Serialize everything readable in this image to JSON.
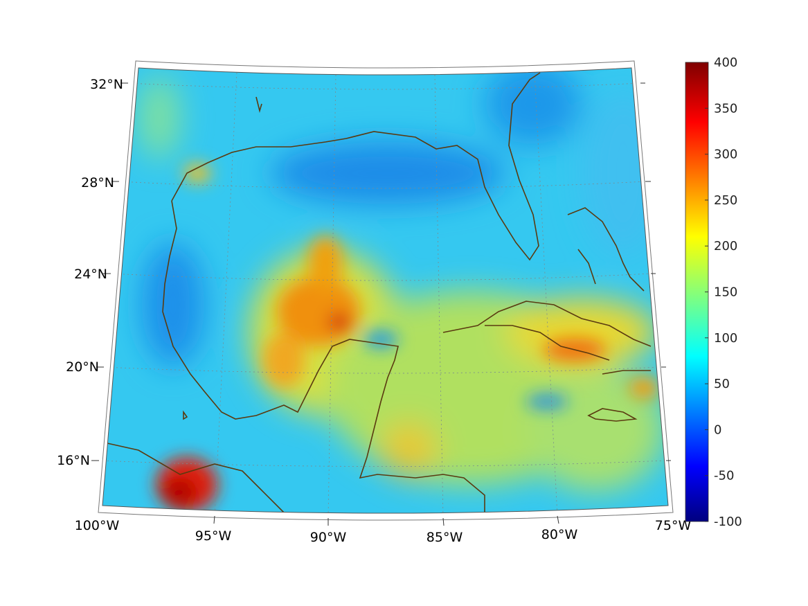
{
  "map": {
    "projection": "conic",
    "region": "Gulf of Mexico and Caribbean",
    "lon_range": [
      -100,
      -75
    ],
    "lat_range": [
      14,
      33
    ],
    "graticule": true,
    "coastline_color": "#5a3a10",
    "lat_labels": [
      "32°N",
      "28°N",
      "24°N",
      "20°N",
      "16°N"
    ],
    "lon_labels": [
      "100°W",
      "95°W",
      "90°W",
      "85°W",
      "80°W",
      "75°W"
    ],
    "field_colors": {
      "background_field": "#2fd0f0",
      "deep_blue": "#1a8ce8",
      "high": "#f0d020",
      "very_high": "#f08010",
      "peak": "#c81010"
    }
  },
  "colorbar": {
    "min": -100,
    "max": 400,
    "placement": "right",
    "colormap": "jet",
    "ticks": [
      "400",
      "350",
      "300",
      "250",
      "200",
      "150",
      "100",
      "50",
      "0",
      "-50",
      "-100"
    ]
  }
}
